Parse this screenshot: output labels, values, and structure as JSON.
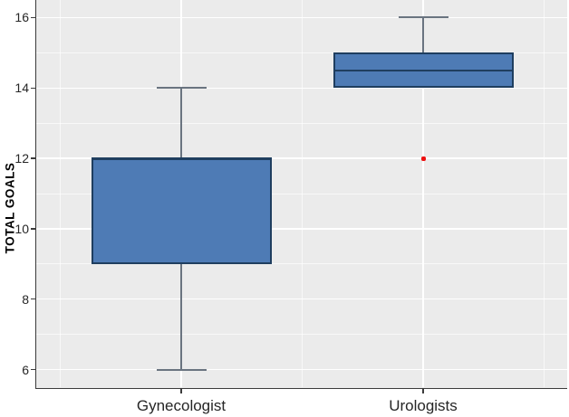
{
  "chart_data": {
    "type": "box",
    "title": "",
    "xlabel": "",
    "ylabel": "TOTAL GOALS",
    "categories": [
      "Gynecologist",
      "Urologists"
    ],
    "yticks": [
      6,
      8,
      10,
      12,
      14,
      16
    ],
    "yminor": [
      7,
      9,
      11,
      13,
      15
    ],
    "ylim": [
      5.5,
      16.5
    ],
    "grid": "white major and minor gridlines on gray panel",
    "legend": "none",
    "series": [
      {
        "name": "Gynecologist",
        "min": 6,
        "q1": 9,
        "median": 12,
        "q3": 12,
        "max": 14,
        "outliers": []
      },
      {
        "name": "Urologists",
        "min": 14,
        "q1": 14,
        "median": 14.5,
        "q3": 15,
        "max": 16,
        "outliers": [
          12
        ]
      }
    ],
    "colors": {
      "panel_bg": "#ebebeb",
      "grid_major": "#ffffff",
      "grid_minor": "rgba(255,255,255,0.65)",
      "box_fill": "#4e7bb5",
      "box_border": "#1f3e5f",
      "whisker": "#6a7480",
      "outlier": "#ee1111",
      "axis_line": "#3b3b3b",
      "tick_label": "#262626",
      "axis_title": "#000000"
    }
  }
}
